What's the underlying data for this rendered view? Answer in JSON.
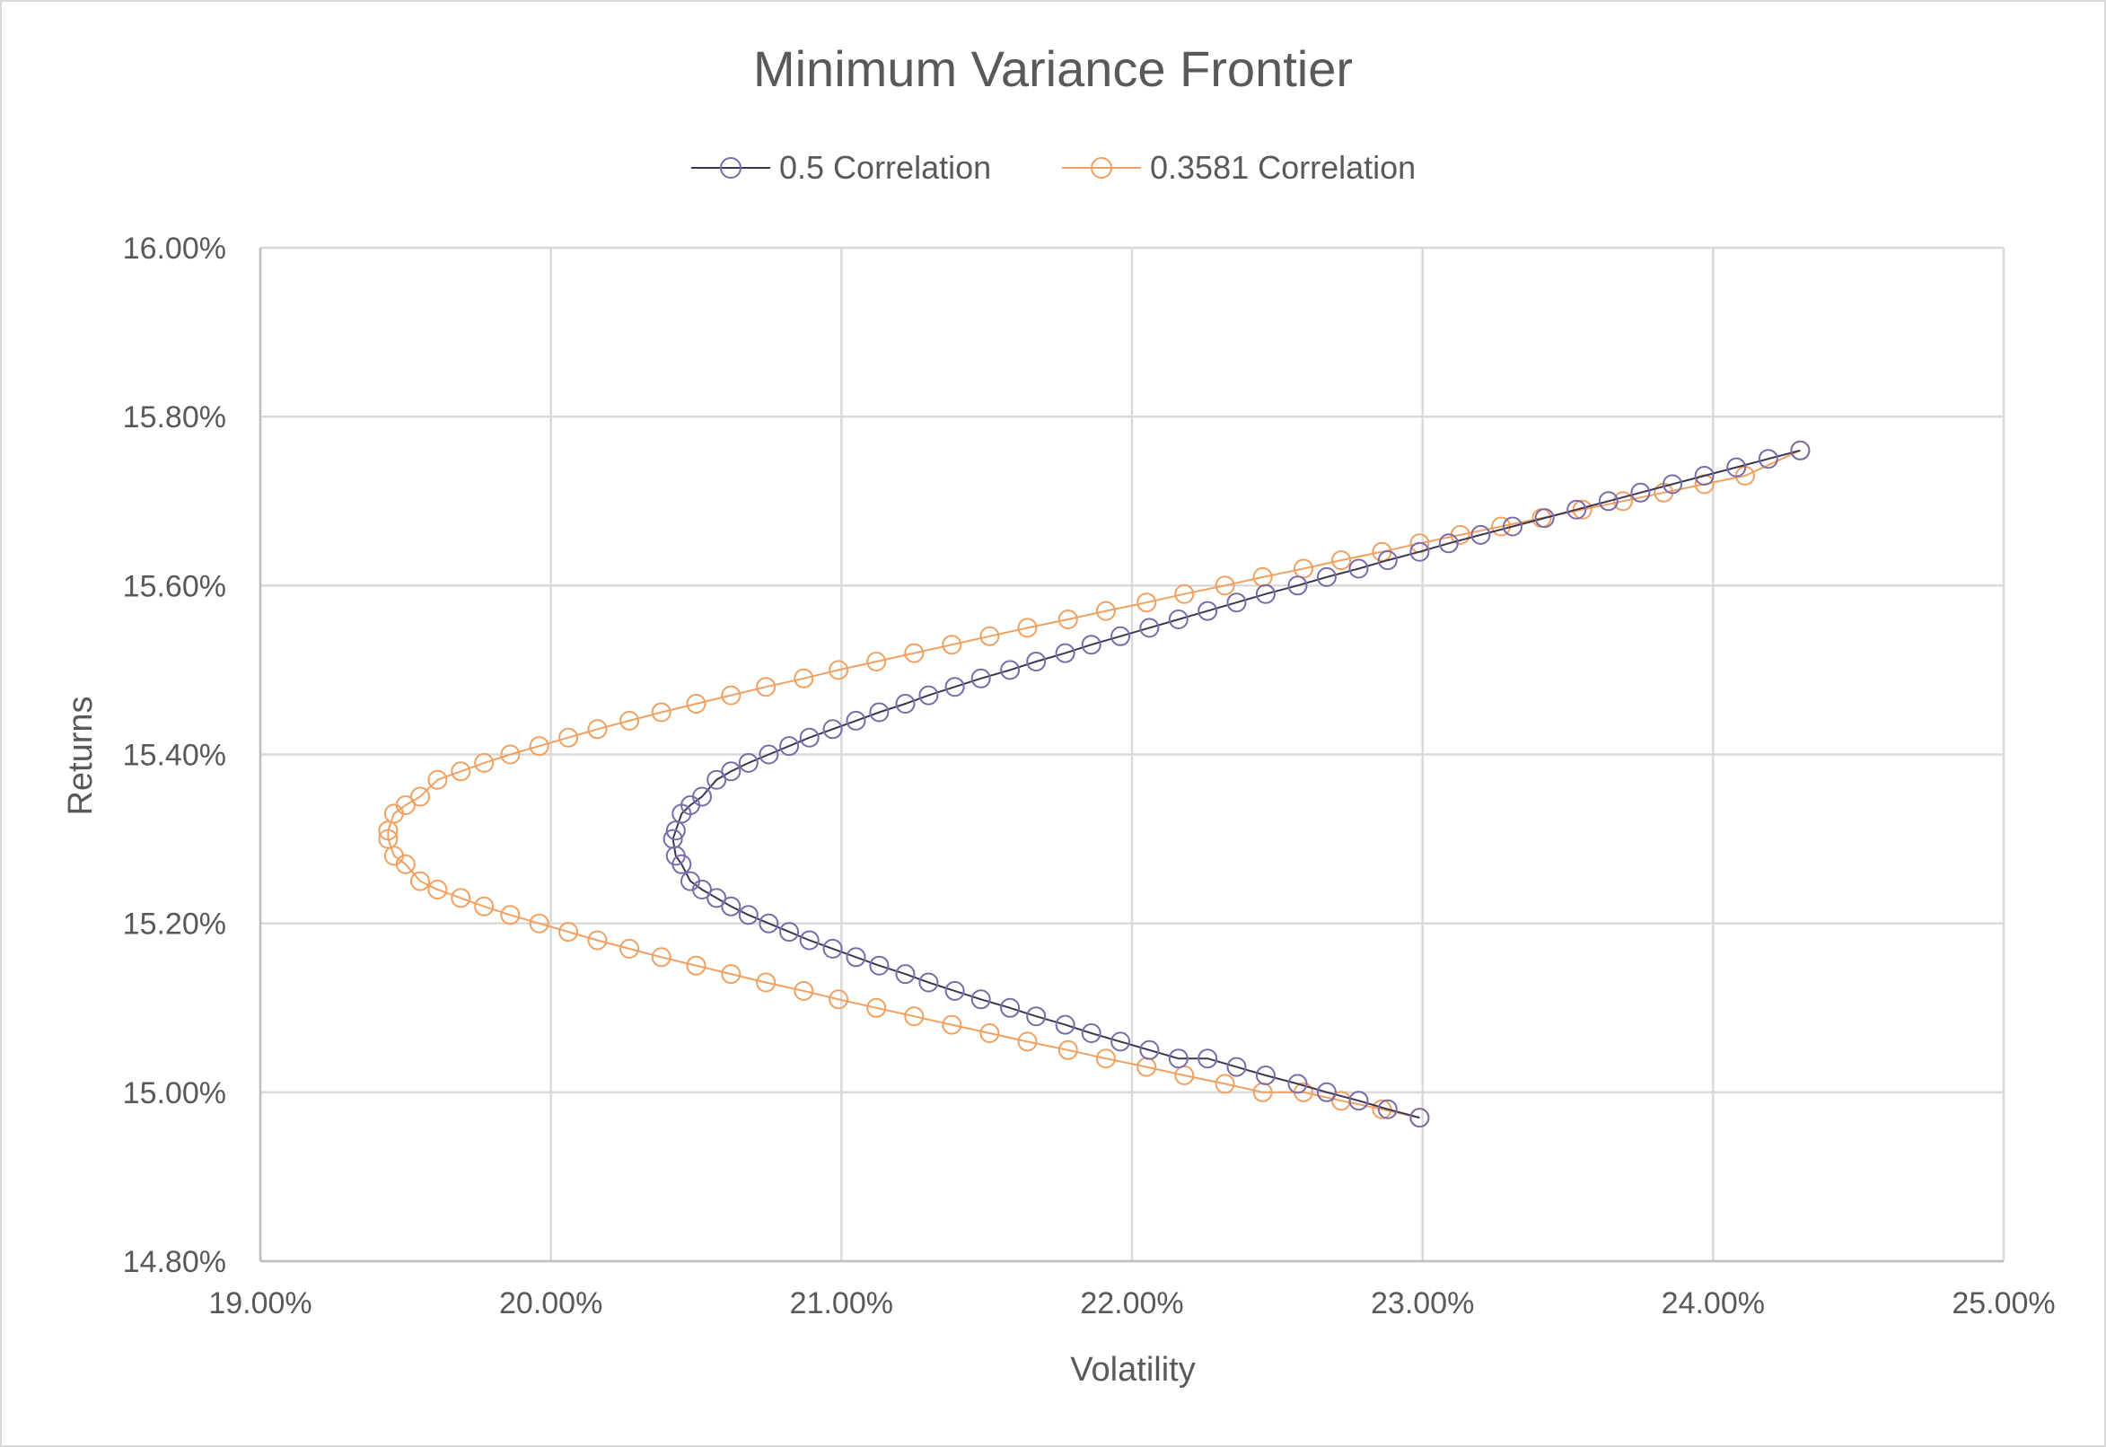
{
  "chart_data": {
    "type": "scatter",
    "title": "Minimum Variance Frontier",
    "xlabel": "Volatility",
    "ylabel": "Returns",
    "xlim": [
      19.0,
      25.0
    ],
    "ylim": [
      14.8,
      16.0
    ],
    "x_ticks": [
      "19.00%",
      "20.00%",
      "21.00%",
      "22.00%",
      "23.00%",
      "24.00%",
      "25.00%"
    ],
    "y_ticks": [
      "16.00%",
      "15.80%",
      "15.60%",
      "15.40%",
      "15.20%",
      "15.00%",
      "14.80%"
    ],
    "grid": true,
    "legend_position": "top",
    "series": [
      {
        "name": "0.5 Correlation",
        "color": "#7a6aa8",
        "line_color": "#3d3552",
        "points": [
          [
            22.99,
            14.97
          ],
          [
            22.88,
            14.98
          ],
          [
            22.78,
            14.99
          ],
          [
            22.67,
            15.0
          ],
          [
            22.57,
            15.01
          ],
          [
            22.46,
            15.02
          ],
          [
            22.36,
            15.03
          ],
          [
            22.26,
            15.04
          ],
          [
            22.16,
            15.04
          ],
          [
            22.06,
            15.05
          ],
          [
            21.96,
            15.06
          ],
          [
            21.86,
            15.07
          ],
          [
            21.77,
            15.08
          ],
          [
            21.67,
            15.09
          ],
          [
            21.58,
            15.1
          ],
          [
            21.48,
            15.11
          ],
          [
            21.39,
            15.12
          ],
          [
            21.3,
            15.13
          ],
          [
            21.22,
            15.14
          ],
          [
            21.13,
            15.15
          ],
          [
            21.05,
            15.16
          ],
          [
            20.97,
            15.17
          ],
          [
            20.89,
            15.18
          ],
          [
            20.82,
            15.19
          ],
          [
            20.75,
            15.2
          ],
          [
            20.68,
            15.21
          ],
          [
            20.62,
            15.22
          ],
          [
            20.57,
            15.23
          ],
          [
            20.52,
            15.24
          ],
          [
            20.48,
            15.25
          ],
          [
            20.45,
            15.27
          ],
          [
            20.43,
            15.28
          ],
          [
            20.42,
            15.3
          ],
          [
            20.43,
            15.31
          ],
          [
            20.45,
            15.33
          ],
          [
            20.48,
            15.34
          ],
          [
            20.52,
            15.35
          ],
          [
            20.57,
            15.37
          ],
          [
            20.62,
            15.38
          ],
          [
            20.68,
            15.39
          ],
          [
            20.75,
            15.4
          ],
          [
            20.82,
            15.41
          ],
          [
            20.89,
            15.42
          ],
          [
            20.97,
            15.43
          ],
          [
            21.05,
            15.44
          ],
          [
            21.13,
            15.45
          ],
          [
            21.22,
            15.46
          ],
          [
            21.3,
            15.47
          ],
          [
            21.39,
            15.48
          ],
          [
            21.48,
            15.49
          ],
          [
            21.58,
            15.5
          ],
          [
            21.67,
            15.51
          ],
          [
            21.77,
            15.52
          ],
          [
            21.86,
            15.53
          ],
          [
            21.96,
            15.54
          ],
          [
            22.06,
            15.55
          ],
          [
            22.16,
            15.56
          ],
          [
            22.26,
            15.57
          ],
          [
            22.36,
            15.58
          ],
          [
            22.46,
            15.59
          ],
          [
            22.57,
            15.6
          ],
          [
            22.67,
            15.61
          ],
          [
            22.78,
            15.62
          ],
          [
            22.88,
            15.63
          ],
          [
            22.99,
            15.64
          ],
          [
            23.09,
            15.65
          ],
          [
            23.2,
            15.66
          ],
          [
            23.31,
            15.67
          ],
          [
            23.42,
            15.68
          ],
          [
            23.53,
            15.69
          ],
          [
            23.64,
            15.7
          ],
          [
            23.75,
            15.71
          ],
          [
            23.86,
            15.72
          ],
          [
            23.97,
            15.73
          ],
          [
            24.08,
            15.74
          ],
          [
            24.19,
            15.75
          ],
          [
            24.3,
            15.76
          ]
        ]
      },
      {
        "name": "0.3581 Correlation",
        "color": "#f0a060",
        "line_color": "#f0a060",
        "points": [
          [
            22.99,
            14.97
          ],
          [
            22.86,
            14.98
          ],
          [
            22.72,
            14.99
          ],
          [
            22.59,
            15.0
          ],
          [
            22.45,
            15.0
          ],
          [
            22.32,
            15.01
          ],
          [
            22.18,
            15.02
          ],
          [
            22.05,
            15.03
          ],
          [
            21.91,
            15.04
          ],
          [
            21.78,
            15.05
          ],
          [
            21.64,
            15.06
          ],
          [
            21.51,
            15.07
          ],
          [
            21.38,
            15.08
          ],
          [
            21.25,
            15.09
          ],
          [
            21.12,
            15.1
          ],
          [
            20.99,
            15.11
          ],
          [
            20.87,
            15.12
          ],
          [
            20.74,
            15.13
          ],
          [
            20.62,
            15.14
          ],
          [
            20.5,
            15.15
          ],
          [
            20.38,
            15.16
          ],
          [
            20.27,
            15.17
          ],
          [
            20.16,
            15.18
          ],
          [
            20.06,
            15.19
          ],
          [
            19.96,
            15.2
          ],
          [
            19.86,
            15.21
          ],
          [
            19.77,
            15.22
          ],
          [
            19.69,
            15.23
          ],
          [
            19.61,
            15.24
          ],
          [
            19.55,
            15.25
          ],
          [
            19.5,
            15.27
          ],
          [
            19.46,
            15.28
          ],
          [
            19.44,
            15.3
          ],
          [
            19.44,
            15.31
          ],
          [
            19.46,
            15.33
          ],
          [
            19.5,
            15.34
          ],
          [
            19.55,
            15.35
          ],
          [
            19.61,
            15.37
          ],
          [
            19.69,
            15.38
          ],
          [
            19.77,
            15.39
          ],
          [
            19.86,
            15.4
          ],
          [
            19.96,
            15.41
          ],
          [
            20.06,
            15.42
          ],
          [
            20.16,
            15.43
          ],
          [
            20.27,
            15.44
          ],
          [
            20.38,
            15.45
          ],
          [
            20.5,
            15.46
          ],
          [
            20.62,
            15.47
          ],
          [
            20.74,
            15.48
          ],
          [
            20.87,
            15.49
          ],
          [
            20.99,
            15.5
          ],
          [
            21.12,
            15.51
          ],
          [
            21.25,
            15.52
          ],
          [
            21.38,
            15.53
          ],
          [
            21.51,
            15.54
          ],
          [
            21.64,
            15.55
          ],
          [
            21.78,
            15.56
          ],
          [
            21.91,
            15.57
          ],
          [
            22.05,
            15.58
          ],
          [
            22.18,
            15.59
          ],
          [
            22.32,
            15.6
          ],
          [
            22.45,
            15.61
          ],
          [
            22.59,
            15.62
          ],
          [
            22.72,
            15.63
          ],
          [
            22.86,
            15.64
          ],
          [
            22.99,
            15.65
          ],
          [
            23.13,
            15.66
          ],
          [
            23.27,
            15.67
          ],
          [
            23.41,
            15.68
          ],
          [
            23.55,
            15.69
          ],
          [
            23.69,
            15.7
          ],
          [
            23.83,
            15.71
          ],
          [
            23.97,
            15.72
          ],
          [
            24.11,
            15.73
          ],
          [
            24.3,
            15.76
          ]
        ]
      }
    ]
  }
}
